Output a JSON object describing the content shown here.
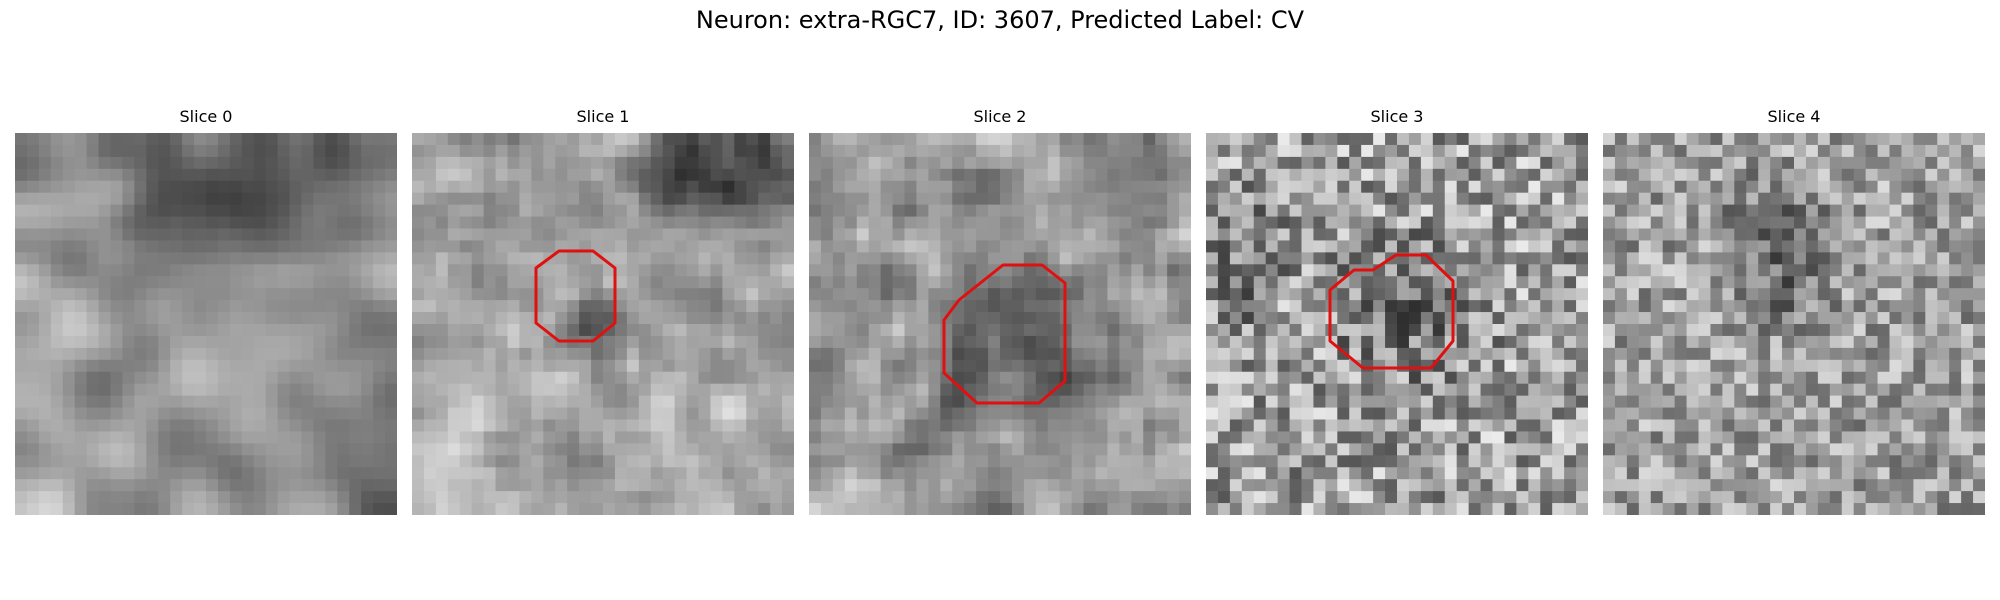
{
  "figure": {
    "title": "Neuron: extra-RGC7, ID: 3607, Predicted Label: CV"
  },
  "panels": [
    {
      "title": "Slice 0",
      "has_roi": false
    },
    {
      "title": "Slice 1",
      "has_roi": true
    },
    {
      "title": "Slice 2",
      "has_roi": true
    },
    {
      "title": "Slice 3",
      "has_roi": true
    },
    {
      "title": "Slice 4",
      "has_roi": false
    }
  ],
  "colors": {
    "roi_outline": "#e01010",
    "background": "#ffffff"
  }
}
